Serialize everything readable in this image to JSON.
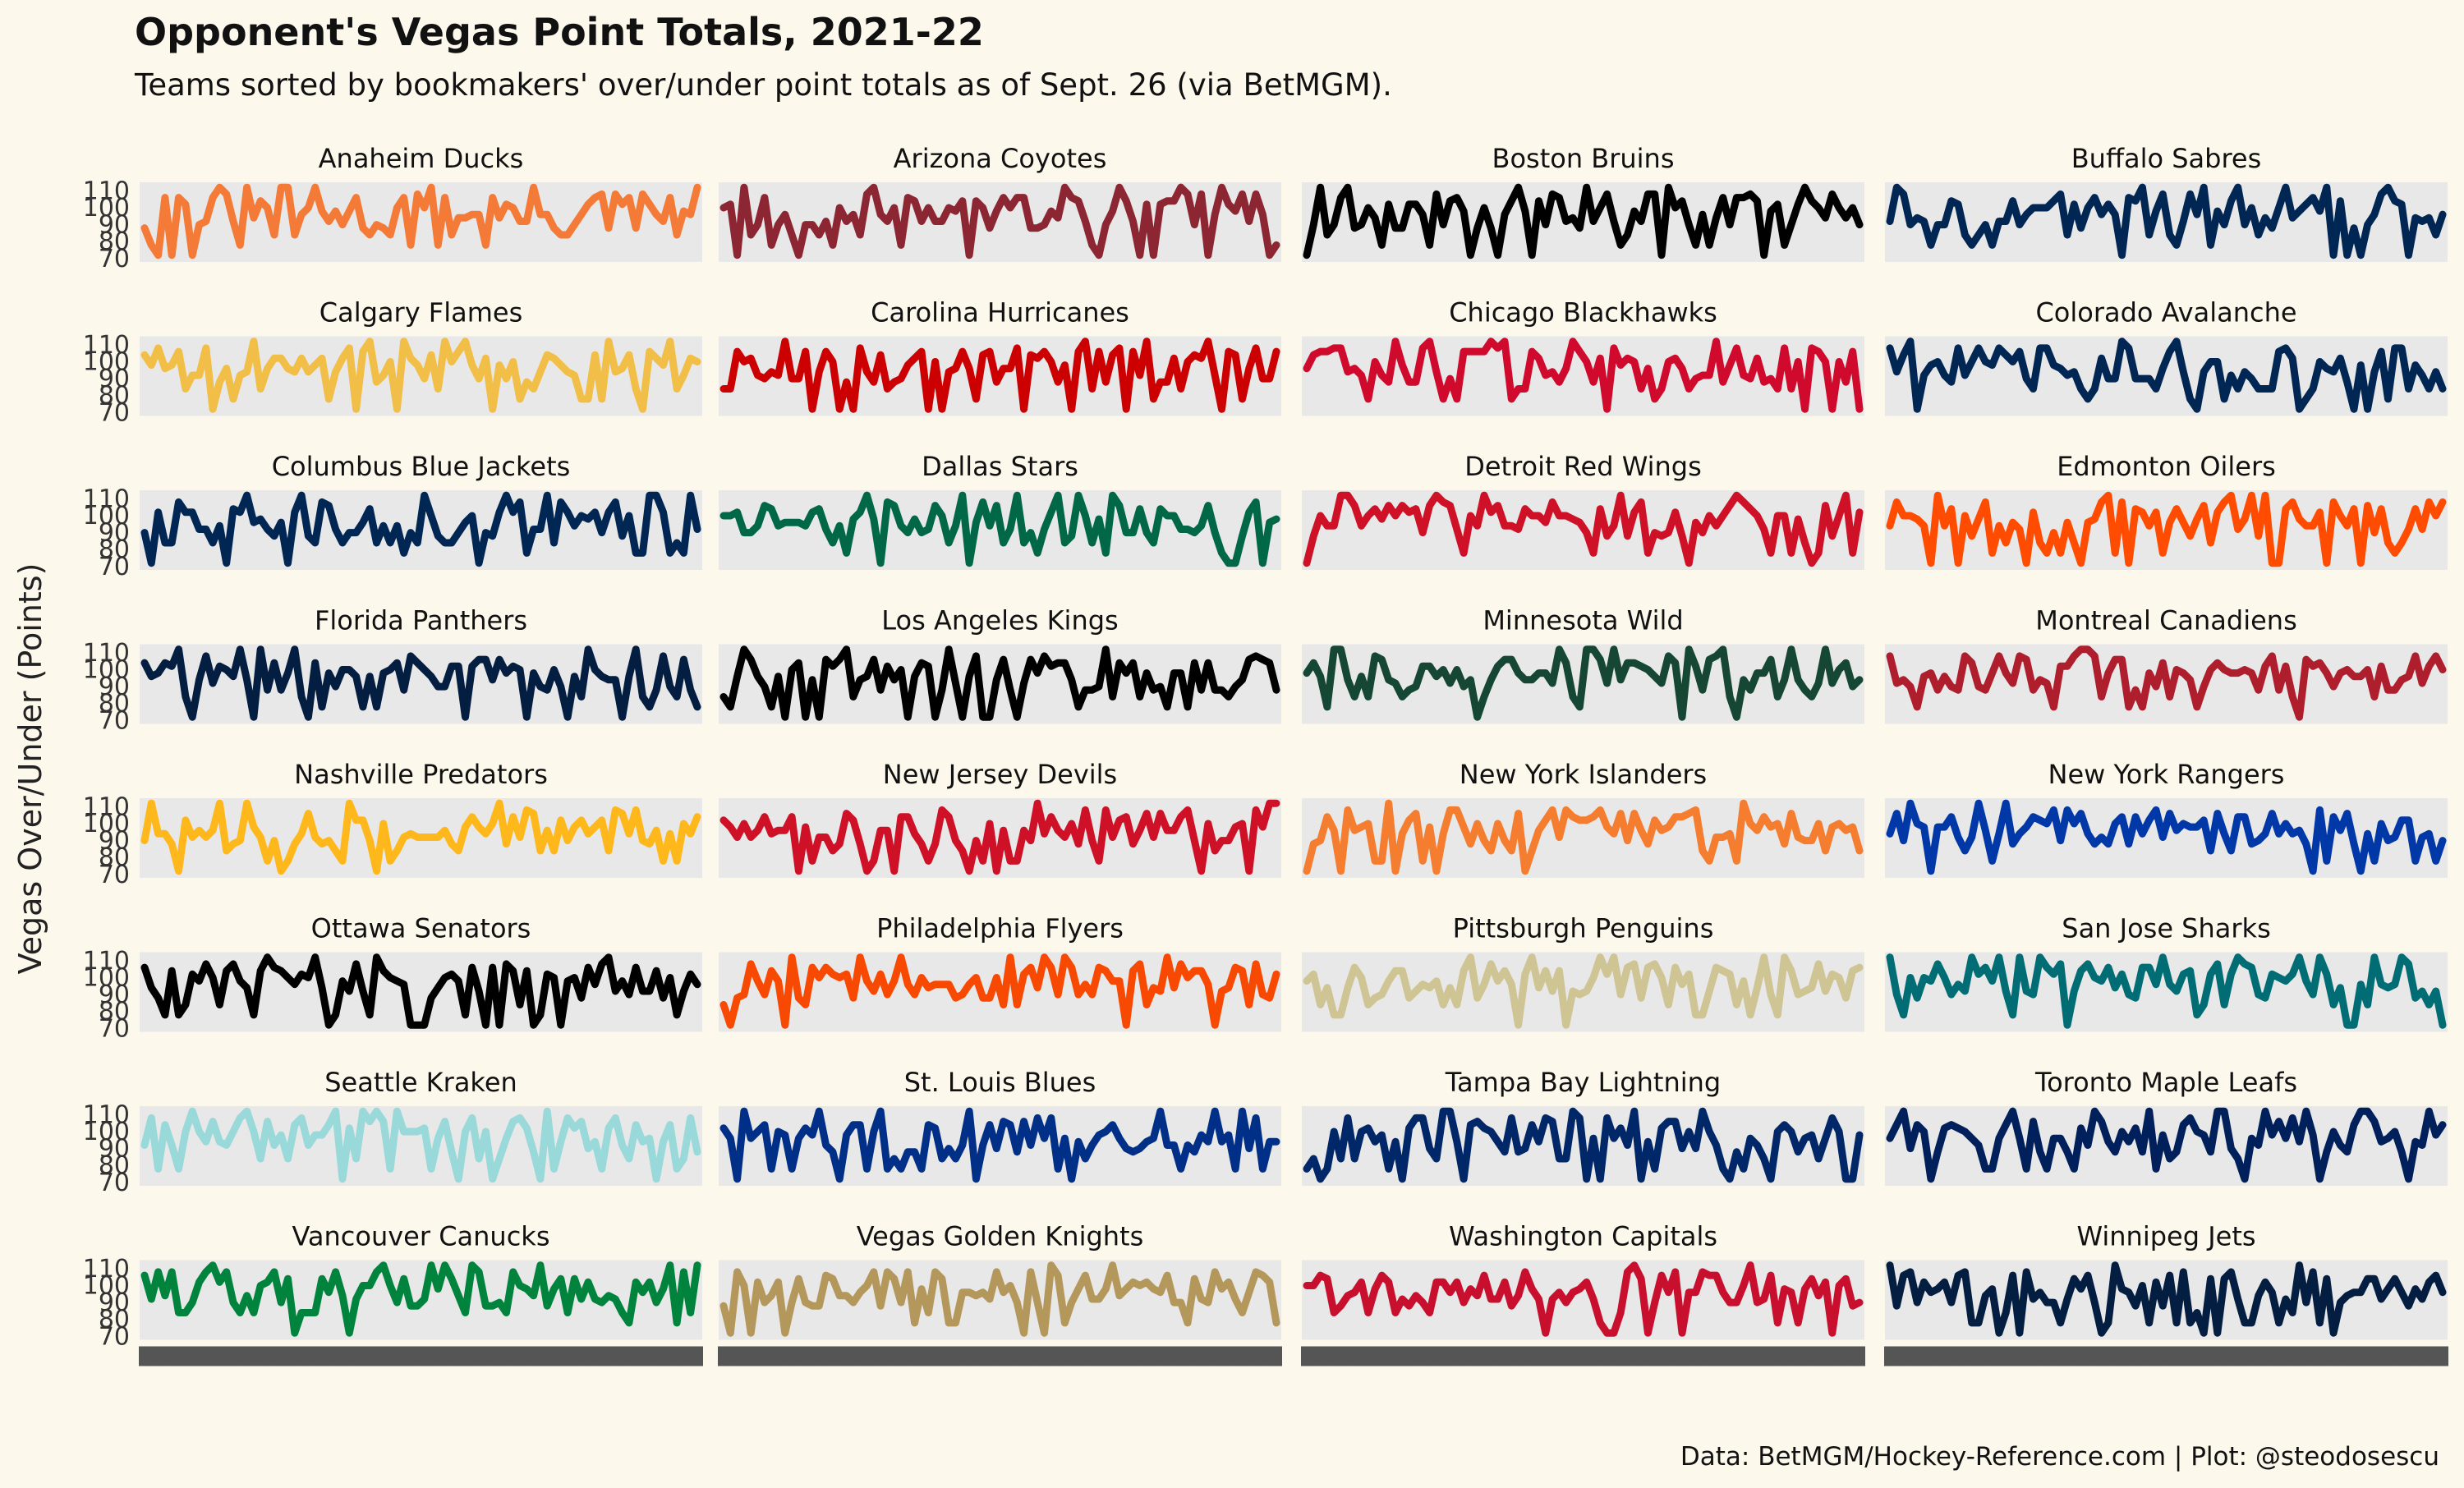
{
  "header": {
    "title": "Opponent's Vegas Point Totals, 2021-22",
    "subtitle": "Teams sorted by bookmakers' over/under point totals as of Sept. 26 (via BetMGM).",
    "caption": "Data: BetMGM/Hockey-Reference.com | Plot: @steodosescu"
  },
  "chart_data": {
    "type": "line",
    "facet": "small-multiples",
    "layout_cols": 4,
    "ylabel": "Vegas Over/Under (Points)",
    "yticks": [
      70,
      80,
      90,
      100,
      110
    ],
    "ylim": [
      68,
      115
    ],
    "games_per_team": 82,
    "grid": false,
    "panel_background": "#e8e8e8",
    "teams": [
      {
        "name": "Anaheim Ducks",
        "color": "#F47A38"
      },
      {
        "name": "Arizona Coyotes",
        "color": "#8C2633"
      },
      {
        "name": "Boston Bruins",
        "color": "#000000"
      },
      {
        "name": "Buffalo Sabres",
        "color": "#002654"
      },
      {
        "name": "Calgary Flames",
        "color": "#F1BE48"
      },
      {
        "name": "Carolina Hurricanes",
        "color": "#CC0000"
      },
      {
        "name": "Chicago Blackhawks",
        "color": "#CF0A2C"
      },
      {
        "name": "Colorado Avalanche",
        "color": "#002654"
      },
      {
        "name": "Columbus Blue Jackets",
        "color": "#002654"
      },
      {
        "name": "Dallas Stars",
        "color": "#006847"
      },
      {
        "name": "Detroit Red Wings",
        "color": "#CE1126"
      },
      {
        "name": "Edmonton Oilers",
        "color": "#FF4C00"
      },
      {
        "name": "Florida Panthers",
        "color": "#041E42"
      },
      {
        "name": "Los Angeles Kings",
        "color": "#000000"
      },
      {
        "name": "Minnesota Wild",
        "color": "#154734"
      },
      {
        "name": "Montreal Canadiens",
        "color": "#AF1E2D"
      },
      {
        "name": "Nashville Predators",
        "color": "#FFB81C"
      },
      {
        "name": "New Jersey Devils",
        "color": "#CE1126"
      },
      {
        "name": "New York Islanders",
        "color": "#F47D30"
      },
      {
        "name": "New York Rangers",
        "color": "#0038A8"
      },
      {
        "name": "Ottawa Senators",
        "color": "#000000"
      },
      {
        "name": "Philadelphia Flyers",
        "color": "#F74902"
      },
      {
        "name": "Pittsburgh Penguins",
        "color": "#CFC493"
      },
      {
        "name": "San Jose Sharks",
        "color": "#006D75"
      },
      {
        "name": "Seattle Kraken",
        "color": "#99D9D9"
      },
      {
        "name": "St. Louis Blues",
        "color": "#002F87"
      },
      {
        "name": "Tampa Bay Lightning",
        "color": "#002868"
      },
      {
        "name": "Toronto Maple Leafs",
        "color": "#00205B"
      },
      {
        "name": "Vancouver Canucks",
        "color": "#00843D"
      },
      {
        "name": "Vegas Golden Knights",
        "color": "#B4975A"
      },
      {
        "name": "Washington Capitals",
        "color": "#C8102E"
      },
      {
        "name": "Winnipeg Jets",
        "color": "#041E42"
      }
    ]
  }
}
